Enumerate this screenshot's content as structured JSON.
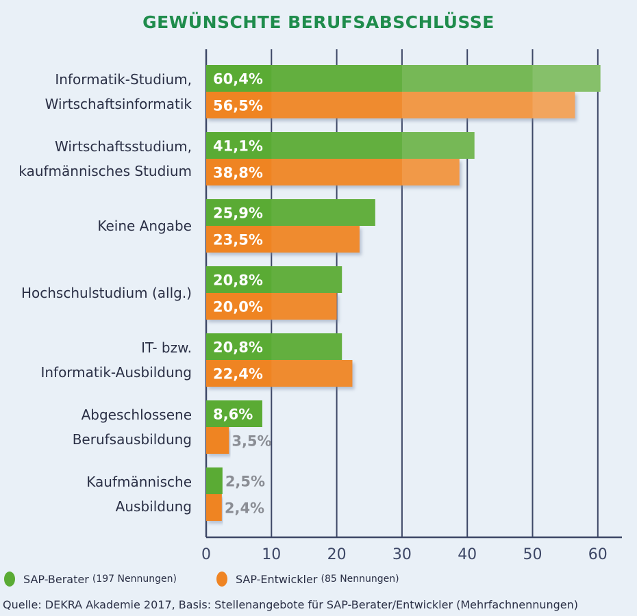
{
  "chart_data": {
    "type": "bar",
    "orientation": "horizontal",
    "title": "GEWÜNSCHTE BERUFSABSCHLÜSSE",
    "categories": [
      [
        "Informatik-Studium,",
        "Wirtschaftsinformatik"
      ],
      [
        "Wirtschaftsstudium,",
        "kaufmännisches Studium"
      ],
      [
        "Keine Angabe"
      ],
      [
        "Hochschulstudium (allg.)"
      ],
      [
        "IT- bzw.",
        "Informatik-Ausbildung"
      ],
      [
        "Abgeschlossene",
        "Berufsausbildung"
      ],
      [
        "Kaufmännische",
        "Ausbildung"
      ]
    ],
    "series": [
      {
        "name": "SAP-Berater (197 Nennungen)",
        "color": "#5aab34",
        "values": [
          60.4,
          41.1,
          25.9,
          20.8,
          20.8,
          8.6,
          2.5
        ],
        "labels": [
          "60,4%",
          "41,1%",
          "25,9%",
          "20,8%",
          "20,8%",
          "8,6%",
          "2,5%"
        ]
      },
      {
        "name": "SAP-Entwickler (85 Nennungen)",
        "color": "#ef8423",
        "values": [
          56.5,
          38.8,
          23.5,
          20.0,
          22.4,
          3.5,
          2.4
        ],
        "labels": [
          "56,5%",
          "38,8%",
          "23,5%",
          "20,0%",
          "22,4%",
          "3,5%",
          "2,4%"
        ]
      }
    ],
    "xlim": [
      0,
      64
    ],
    "xticks": [
      "0",
      "10",
      "20",
      "30",
      "40",
      "50",
      "60"
    ],
    "grid": true,
    "legend_position": "bottom-left"
  },
  "legend": {
    "items": [
      {
        "main": "SAP-Berater",
        "note": "(197 Nennungen)",
        "color": "#5aab34"
      },
      {
        "main": "SAP-Entwickler",
        "note": "(85 Nennungen)",
        "color": "#ef8423"
      }
    ]
  },
  "source": "Quelle: DEKRA Akademie 2017, Basis: Stellenangebote für SAP-Berater/Entwickler (Mehrfachnennungen)"
}
